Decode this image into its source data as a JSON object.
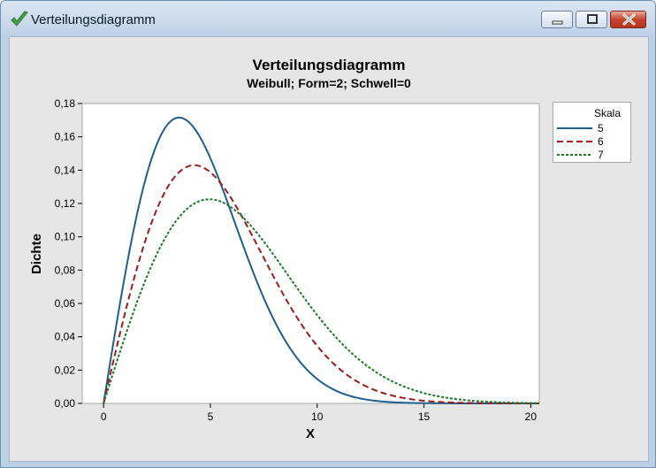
{
  "window": {
    "title": "Verteilungsdiagramm"
  },
  "colors": {
    "series_5": "#1f5f8f",
    "series_6": "#9b1c1c",
    "series_7": "#1c7a2a"
  },
  "chart_data": {
    "type": "line",
    "title": "Verteilungsdiagramm",
    "subtitle": "Weibull; Form=2; Schwell=0",
    "xlabel": "X",
    "ylabel": "Dichte",
    "xlim": [
      -1,
      20.4
    ],
    "ylim": [
      0,
      0.18
    ],
    "xticks": [
      0,
      5,
      10,
      15,
      20
    ],
    "xtick_labels": [
      "0",
      "5",
      "10",
      "15",
      "20"
    ],
    "yticks": [
      0,
      0.02,
      0.04,
      0.06,
      0.08,
      0.1,
      0.12,
      0.14,
      0.16,
      0.18
    ],
    "ytick_labels": [
      "0,00",
      "0,02",
      "0,04",
      "0,06",
      "0,08",
      "0,10",
      "0,12",
      "0,14",
      "0,16",
      "0,18"
    ],
    "legend": {
      "title": "Skala",
      "position": "right"
    },
    "distribution": {
      "family": "Weibull",
      "shape": 2,
      "threshold": 0
    },
    "series": [
      {
        "name": "5",
        "scale": 5,
        "style": "solid"
      },
      {
        "name": "6",
        "scale": 6,
        "style": "dashed"
      },
      {
        "name": "7",
        "scale": 7,
        "style": "dotted"
      }
    ]
  }
}
